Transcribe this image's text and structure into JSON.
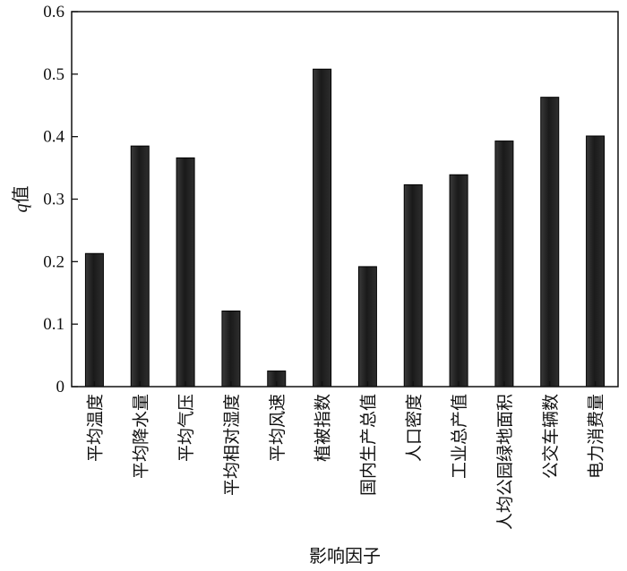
{
  "chart_data": {
    "type": "bar",
    "title": "",
    "xlabel": "影响因子",
    "ylabel": "q值",
    "ylabel_italic_part": "q",
    "ylabel_rest": "值",
    "ylim": [
      0,
      0.6
    ],
    "yticks": [
      "0",
      "0.1",
      "0.2",
      "0.3",
      "0.4",
      "0.5",
      "0.6"
    ],
    "categories": [
      "平均温度",
      "平均降水量",
      "平均气压",
      "平均相对湿度",
      "平均风速",
      "植被指数",
      "国内生产总值",
      "人口密度",
      "工业总产值",
      "人均公园绿地面积",
      "公交车辆数",
      "电力消费量"
    ],
    "values": [
      0.213,
      0.385,
      0.366,
      0.121,
      0.025,
      0.508,
      0.192,
      0.323,
      0.339,
      0.393,
      0.463,
      0.401
    ],
    "bar_color": "#1c1c1c",
    "grid": false,
    "legend": "none"
  }
}
